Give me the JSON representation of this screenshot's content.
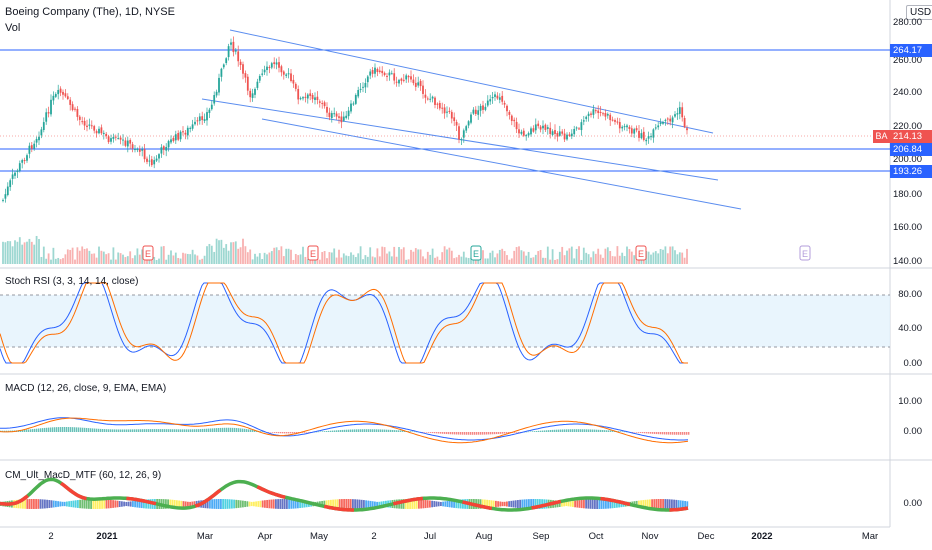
{
  "header": {
    "symbol_title": "Boeing Company (The), 1D, NYSE",
    "volume_label": "Vol",
    "currency": "USD"
  },
  "price_axis": {
    "ticks": [
      "280.00",
      "260.00",
      "240.00",
      "220.00",
      "200.00",
      "180.00",
      "160.00",
      "140.00"
    ]
  },
  "price_tags": {
    "resistance": "264.17",
    "ticker": "BA",
    "last": "214.13",
    "support1": "206.84",
    "support2": "193.26"
  },
  "colors": {
    "level_line": "#2962ff",
    "channel_line": "#5b8def",
    "up": "#26a69a",
    "down": "#ef5350",
    "k_line": "#2962ff",
    "d_line": "#ff6d00",
    "rsi_band": "#e3f2fd"
  },
  "earnings_marker": "E",
  "stoch": {
    "title": "Stoch RSI (3, 3, 14, 14, close)",
    "ticks": [
      "80.00",
      "40.00",
      "0.00"
    ]
  },
  "macd": {
    "title": "MACD (12, 26, close, 9, EMA, EMA)",
    "ticks": [
      "10.00",
      "0.00"
    ]
  },
  "cm_macd": {
    "title": "CM_Ult_MacD_MTF (60, 12, 26, 9)",
    "ticks": [
      "0.00"
    ]
  },
  "time_axis": {
    "labels": [
      "2",
      "2021",
      "Mar",
      "Apr",
      "May",
      "2",
      "Jul",
      "Aug",
      "Sep",
      "Oct",
      "Nov",
      "Dec",
      "2022",
      "Mar"
    ]
  }
}
